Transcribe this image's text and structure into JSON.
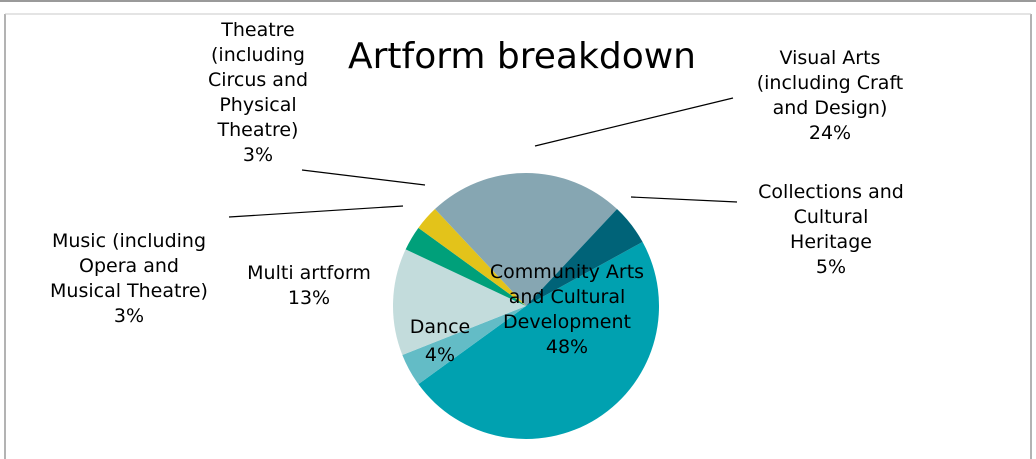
{
  "chart_data": {
    "type": "pie",
    "title": "Artform breakdown",
    "slices": [
      {
        "label_lines": [
          "Community Arts",
          "and Cultural",
          "Development"
        ],
        "pct_label": "48%",
        "value": 48,
        "color": "#00a1b0"
      },
      {
        "label_lines": [
          "Dance"
        ],
        "pct_label": "4%",
        "value": 4,
        "color": "#63bcc6"
      },
      {
        "label_lines": [
          "Multi artform"
        ],
        "pct_label": "13%",
        "value": 13,
        "color": "#c3dcdc"
      },
      {
        "label_lines": [
          "Music (including",
          "Opera and",
          "Musical Theatre)"
        ],
        "pct_label": "3%",
        "value": 3,
        "color": "#00a07a"
      },
      {
        "label_lines": [
          "Theatre",
          "(including",
          "Circus and",
          "Physical",
          "Theatre)"
        ],
        "pct_label": "3%",
        "value": 3,
        "color": "#e3c31a"
      },
      {
        "label_lines": [
          "Visual Arts",
          "(including Craft",
          "and Design)"
        ],
        "pct_label": "24%",
        "value": 24,
        "color": "#86a6b2"
      },
      {
        "label_lines": [
          "Collections and",
          "Cultural",
          "Heritage"
        ],
        "pct_label": "5%",
        "value": 5,
        "color": "#006378"
      }
    ],
    "start_slice": "Community Arts and Cultural Development",
    "direction": "clockwise",
    "legend": "none"
  }
}
